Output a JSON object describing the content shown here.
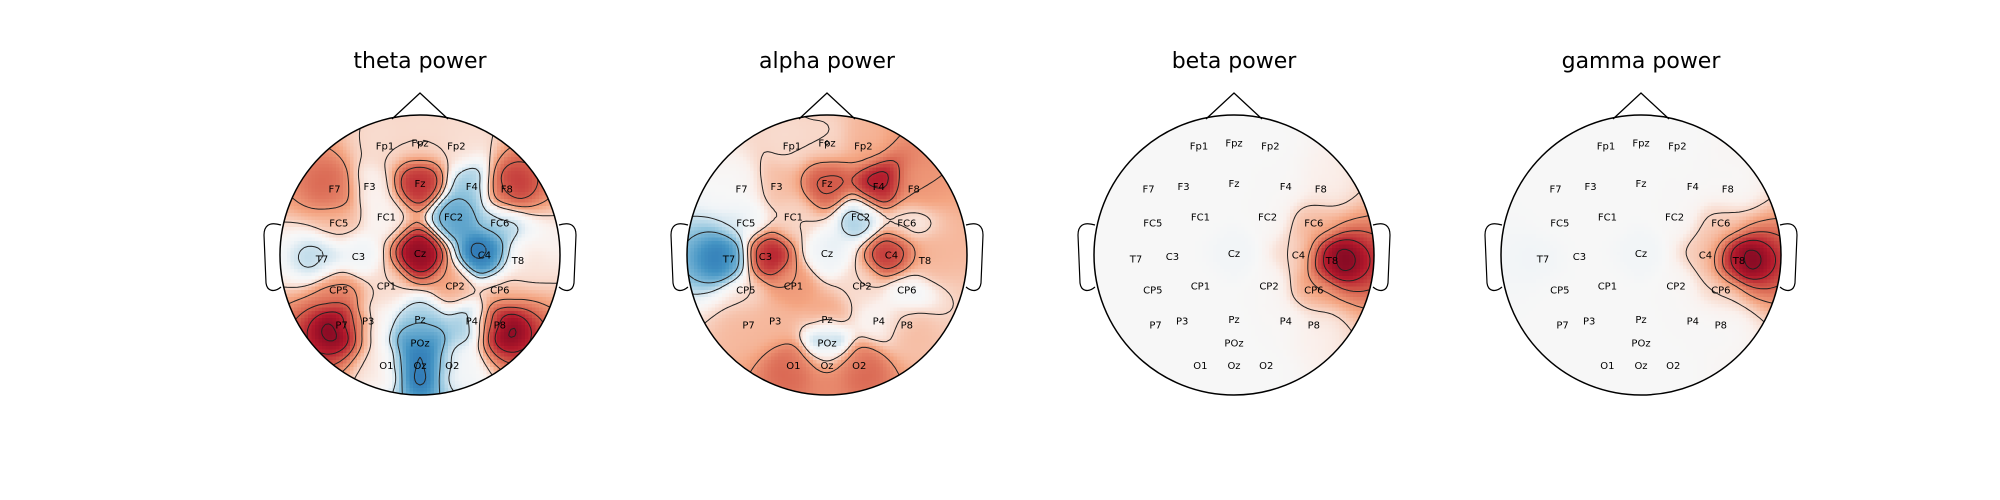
{
  "chart_data": {
    "type": "heatmap",
    "subtype": "eeg-topomap",
    "colormap": "RdBu_r",
    "grid": false,
    "legend": "none",
    "channels": [
      "Fp1",
      "Fpz",
      "Fp2",
      "F7",
      "F3",
      "Fz",
      "F4",
      "F8",
      "FC5",
      "FC1",
      "FC2",
      "FC6",
      "T7",
      "C3",
      "Cz",
      "C4",
      "T8",
      "CP5",
      "CP1",
      "CP2",
      "CP6",
      "P7",
      "P3",
      "Pz",
      "P4",
      "P8",
      "POz",
      "O1",
      "Oz",
      "O2"
    ],
    "panels": [
      {
        "title": "theta power",
        "values": {
          "Fp1": 0.1,
          "Fpz": 0.1,
          "Fp2": 0.1,
          "F7": 0.5,
          "F3": 0.0,
          "Fz": 0.8,
          "F4": -0.3,
          "F8": 0.7,
          "FC5": 0.2,
          "FC1": 0.0,
          "FC2": -0.5,
          "FC6": -0.2,
          "T7": -0.2,
          "C3": -0.1,
          "Cz": 1.0,
          "C4": -0.85,
          "T8": 0.1,
          "CP5": 0.4,
          "CP1": 0.1,
          "CP2": 0.3,
          "CP6": 0.2,
          "P7": 1.0,
          "P3": 0.0,
          "Pz": -0.2,
          "P4": -0.3,
          "P8": 1.0,
          "POz": -0.6,
          "O1": 0.1,
          "Oz": -0.8,
          "O2": 0.0
        }
      },
      {
        "title": "alpha power",
        "values": {
          "Fp1": 0.1,
          "Fpz": 0.1,
          "Fp2": 0.2,
          "F7": 0.0,
          "F3": 0.2,
          "Fz": 0.6,
          "F4": 0.9,
          "F8": 0.3,
          "FC5": -0.1,
          "FC1": 0.1,
          "FC2": -0.3,
          "FC6": 0.0,
          "T7": -0.7,
          "C3": 0.9,
          "Cz": -0.1,
          "C4": 0.8,
          "T8": 0.2,
          "CP5": 0.1,
          "CP1": 0.3,
          "CP2": 0.1,
          "CP6": -0.1,
          "P7": 0.2,
          "P3": 0.2,
          "Pz": 0.3,
          "P4": 0.0,
          "P8": 0.2,
          "POz": -0.5,
          "O1": 0.5,
          "Oz": 0.4,
          "O2": 0.5
        }
      },
      {
        "title": "beta power",
        "values": {
          "Fp1": 0.0,
          "Fpz": 0.0,
          "Fp2": 0.0,
          "F7": 0.0,
          "F3": 0.0,
          "Fz": 0.0,
          "F4": 0.0,
          "F8": 0.05,
          "FC5": 0.0,
          "FC1": 0.0,
          "FC2": 0.0,
          "FC6": 0.2,
          "T7": 0.0,
          "C3": 0.0,
          "Cz": -0.05,
          "C4": 0.1,
          "T8": 1.0,
          "CP5": 0.0,
          "CP1": 0.0,
          "CP2": 0.0,
          "CP6": 0.25,
          "P7": 0.0,
          "P3": 0.0,
          "Pz": 0.0,
          "P4": 0.0,
          "P8": 0.05,
          "POz": 0.0,
          "O1": 0.0,
          "Oz": 0.0,
          "O2": 0.0
        }
      },
      {
        "title": "gamma power",
        "values": {
          "Fp1": 0.0,
          "Fpz": 0.0,
          "Fp2": 0.0,
          "F7": 0.0,
          "F3": 0.0,
          "Fz": 0.0,
          "F4": 0.0,
          "F8": 0.0,
          "FC5": 0.0,
          "FC1": 0.0,
          "FC2": 0.0,
          "FC6": 0.15,
          "T7": -0.05,
          "C3": 0.0,
          "Cz": -0.05,
          "C4": 0.15,
          "T8": 1.0,
          "CP5": 0.0,
          "CP1": 0.0,
          "CP2": 0.0,
          "CP6": 0.1,
          "P7": 0.0,
          "P3": 0.0,
          "Pz": 0.0,
          "P4": 0.0,
          "P8": 0.0,
          "POz": 0.0,
          "O1": 0.0,
          "Oz": 0.0,
          "O2": 0.0
        }
      }
    ]
  }
}
